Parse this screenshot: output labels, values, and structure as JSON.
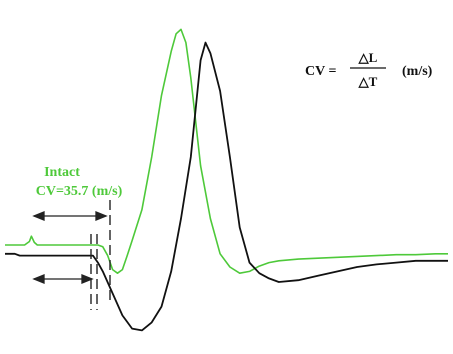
{
  "chart_data": {
    "type": "line",
    "title": "",
    "xlabel": "",
    "ylabel": "",
    "grid": false,
    "annotation": {
      "label": "Intact",
      "cv_text": "CV=35.7 (m/s)",
      "cv_value": 35.7,
      "unit": "(m/s)"
    },
    "formula": {
      "lhs": "CV =",
      "numerator": "△L",
      "denominator": "△T",
      "unit": "(m/s)"
    },
    "series": [
      {
        "color": "#4ec93a",
        "x": [
          0,
          20,
          25,
          27,
          30,
          33,
          45,
          60,
          80,
          95,
          100,
          105,
          110,
          115,
          120,
          125,
          130,
          140,
          150,
          160,
          170,
          175,
          180,
          185,
          190,
          195,
          200,
          210,
          220,
          230,
          240,
          250,
          260,
          270,
          280,
          300,
          320,
          340,
          360,
          380,
          400,
          420,
          440,
          453
        ],
        "y": [
          0,
          0,
          4,
          10,
          3,
          0,
          0,
          0,
          0,
          0,
          -2,
          -12,
          -28,
          -32,
          -28,
          -12,
          5,
          40,
          100,
          170,
          220,
          240,
          245,
          230,
          190,
          140,
          90,
          30,
          -10,
          -25,
          -32,
          -30,
          -24,
          -20,
          -18,
          -16,
          -15,
          -14,
          -13,
          -12,
          -11,
          -11,
          -10,
          -10
        ]
      },
      {
        "color": "#111111",
        "x": [
          0,
          10,
          15,
          20,
          30,
          40,
          60,
          80,
          90,
          95,
          100,
          110,
          120,
          130,
          140,
          150,
          160,
          170,
          180,
          190,
          195,
          200,
          205,
          210,
          220,
          230,
          240,
          250,
          260,
          270,
          280,
          300,
          320,
          340,
          360,
          380,
          400,
          420,
          440,
          453
        ],
        "y": [
          -10,
          -10,
          -12,
          -12,
          -12,
          -12,
          -12,
          -12,
          -12,
          -20,
          -30,
          -55,
          -80,
          -95,
          -97,
          -88,
          -70,
          -30,
          30,
          100,
          155,
          210,
          230,
          218,
          175,
          100,
          20,
          -20,
          -32,
          -38,
          -42,
          -40,
          -35,
          -30,
          -25,
          -22,
          -20,
          -18,
          -18,
          -18
        ]
      }
    ],
    "xlim": [
      0,
      453
    ],
    "ylim": [
      -100,
      250
    ]
  }
}
